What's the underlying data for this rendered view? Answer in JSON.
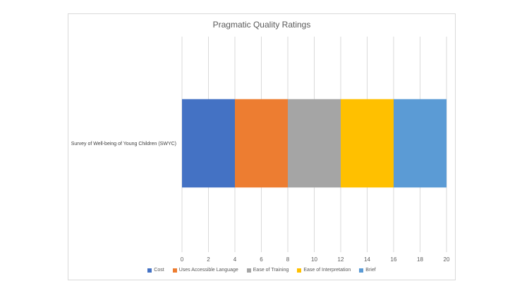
{
  "chart_data": {
    "type": "bar",
    "orientation": "horizontal",
    "stacked": true,
    "title": "Pragmatic Quality Ratings",
    "categories": [
      "Survey of Well-being of Young Children (SWYC)"
    ],
    "series": [
      {
        "name": "Cost",
        "values": [
          4
        ],
        "color": "#4472C4"
      },
      {
        "name": "Uses Accessible Language",
        "values": [
          4
        ],
        "color": "#ED7D31"
      },
      {
        "name": "Ease of Training",
        "values": [
          4
        ],
        "color": "#A5A5A5"
      },
      {
        "name": "Ease of Interpretation",
        "values": [
          4
        ],
        "color": "#FFC000"
      },
      {
        "name": "Brief",
        "values": [
          4
        ],
        "color": "#5B9BD5"
      }
    ],
    "xlim": [
      0,
      20
    ],
    "xticks": [
      0,
      2,
      4,
      6,
      8,
      10,
      12,
      14,
      16,
      18,
      20
    ],
    "grid": "vertical",
    "legend_position": "bottom"
  }
}
